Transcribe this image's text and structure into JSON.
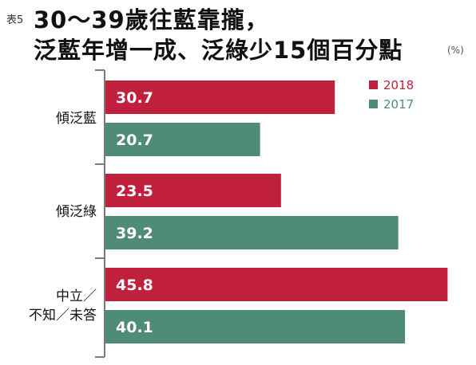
{
  "header": {
    "table_no": "表5",
    "title_line1": "30～39歲往藍靠攏，",
    "title_line2": "泛藍年增一成、泛綠少15個百分點",
    "unit": "(%)"
  },
  "chart_data": {
    "type": "bar",
    "orientation": "horizontal",
    "categories": [
      "傾泛藍",
      "傾泛綠",
      "中立／不知／未答"
    ],
    "category_labels": [
      [
        "傾泛藍"
      ],
      [
        "傾泛綠"
      ],
      [
        "中立／",
        "不知／未答"
      ]
    ],
    "series": [
      {
        "name": "2018",
        "values": [
          30.7,
          23.5,
          45.8
        ]
      },
      {
        "name": "2017",
        "values": [
          20.7,
          39.2,
          40.1
        ]
      }
    ],
    "xlim": [
      0,
      48
    ],
    "grid": false,
    "legend": "top-right",
    "colors": {
      "2018": "#c0203b",
      "2017": "#4e8c76",
      "axis": "#7a7a7a",
      "bar_text": "#ffffff"
    }
  }
}
